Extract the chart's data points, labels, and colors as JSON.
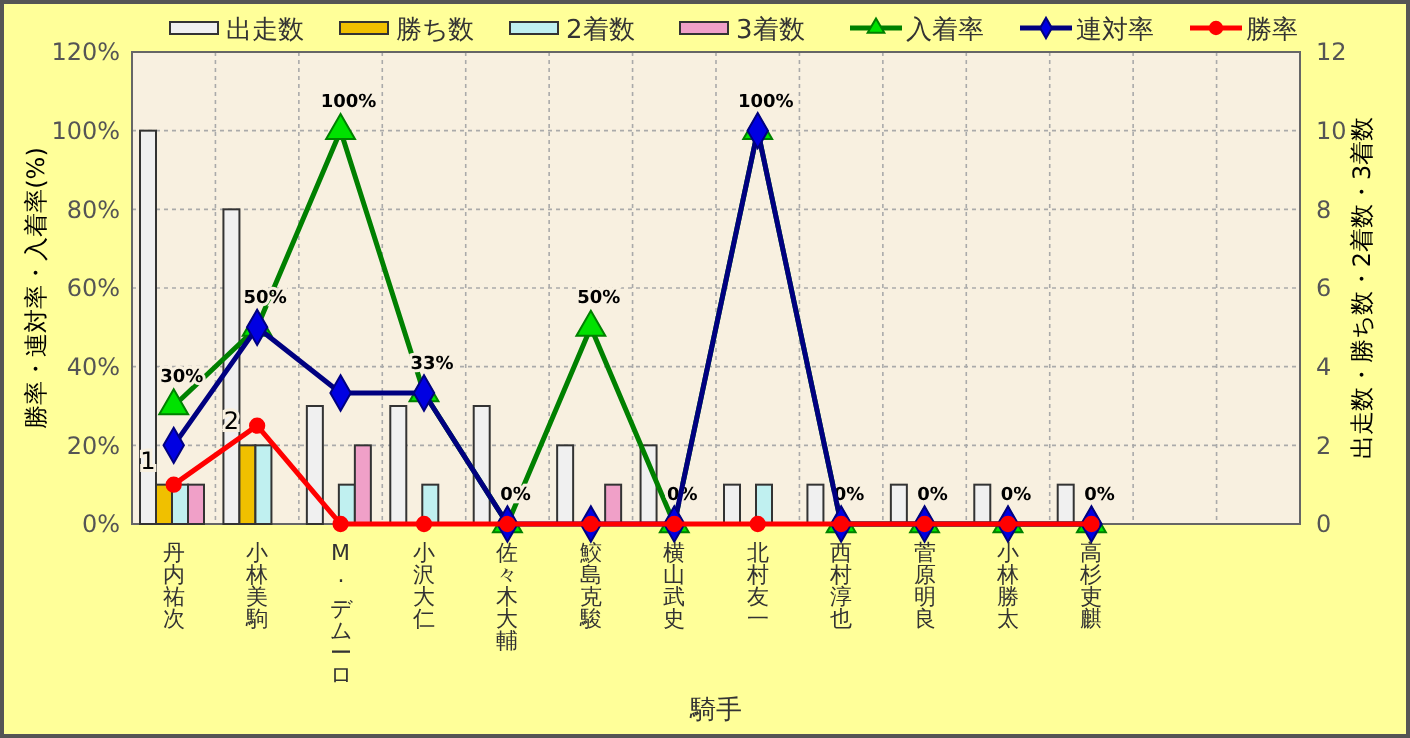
{
  "chart_data": {
    "type": "bar",
    "xlabel": "騎手",
    "ylabel": "勝率・連対率・入着率(%)",
    "y2label": "出走数・勝ち数・2着数・3着数",
    "categories": [
      "丹内祐次",
      "小林美駒",
      "M. デムーロ",
      "小沢大仁",
      "佐々木大輔",
      "鮫島克駿",
      "横山武史",
      "北村友一",
      "西村淳也",
      "菅原明良",
      "小林勝太",
      "高杉吏麒",
      null,
      null
    ],
    "series": [
      {
        "name": "出走数",
        "axis": "y2",
        "color": "#f0f0f0",
        "values": [
          10,
          8,
          3,
          3,
          3,
          2,
          2,
          1,
          1,
          1,
          1,
          1,
          null,
          null
        ]
      },
      {
        "name": "勝ち数",
        "axis": "y2",
        "color": "#f0c000",
        "values": [
          1,
          2,
          0,
          0,
          0,
          0,
          0,
          0,
          0,
          0,
          0,
          0,
          null,
          null
        ],
        "value_labels": [
          "1",
          "2",
          null,
          null,
          null,
          null,
          null,
          null,
          null,
          null,
          null,
          null,
          null,
          null
        ]
      },
      {
        "name": "2着数",
        "axis": "y2",
        "color": "#c0f0f0",
        "values": [
          1,
          2,
          1,
          1,
          0,
          0,
          0,
          1,
          0,
          0,
          0,
          0,
          null,
          null
        ]
      },
      {
        "name": "3着数",
        "axis": "y2",
        "color": "#f0a0c8",
        "values": [
          1,
          0,
          2,
          0,
          0,
          1,
          0,
          0,
          0,
          0,
          0,
          0,
          null,
          null
        ]
      },
      {
        "name": "入着率",
        "type": "line",
        "color": "#008000",
        "marker": "triangle",
        "values": [
          30,
          50,
          100,
          33.3,
          0,
          50,
          0,
          100,
          0,
          0,
          0,
          0,
          null,
          null
        ],
        "value_labels": [
          "30%",
          "50%",
          "100%",
          "33%",
          "0%",
          "50%",
          "0%",
          "100%",
          "0%",
          "0%",
          "0%",
          "0%",
          null,
          null
        ]
      },
      {
        "name": "連対率",
        "type": "line",
        "color": "#000080",
        "marker": "diamond",
        "values": [
          20,
          50,
          33.3,
          33.3,
          0,
          0,
          0,
          100,
          0,
          0,
          0,
          0,
          null,
          null
        ]
      },
      {
        "name": "勝率",
        "type": "line",
        "color": "#ff0000",
        "marker": "circle",
        "values": [
          10,
          25,
          0,
          0,
          0,
          0,
          0,
          0,
          0,
          0,
          0,
          0,
          null,
          null
        ]
      }
    ],
    "ylim": [
      0,
      120
    ],
    "yticks": [
      {
        "value": 0,
        "label": "0%"
      },
      {
        "value": 20,
        "label": "20%"
      },
      {
        "value": 40,
        "label": "40%"
      },
      {
        "value": 60,
        "label": "60%"
      },
      {
        "value": 80,
        "label": "80%"
      },
      {
        "value": 100,
        "label": "100%"
      },
      {
        "value": 120,
        "label": "120%"
      }
    ],
    "y2lim": [
      0,
      12
    ],
    "y2ticks": [
      0,
      2,
      4,
      6,
      8,
      10,
      12
    ],
    "grid": true,
    "legend": "top"
  }
}
